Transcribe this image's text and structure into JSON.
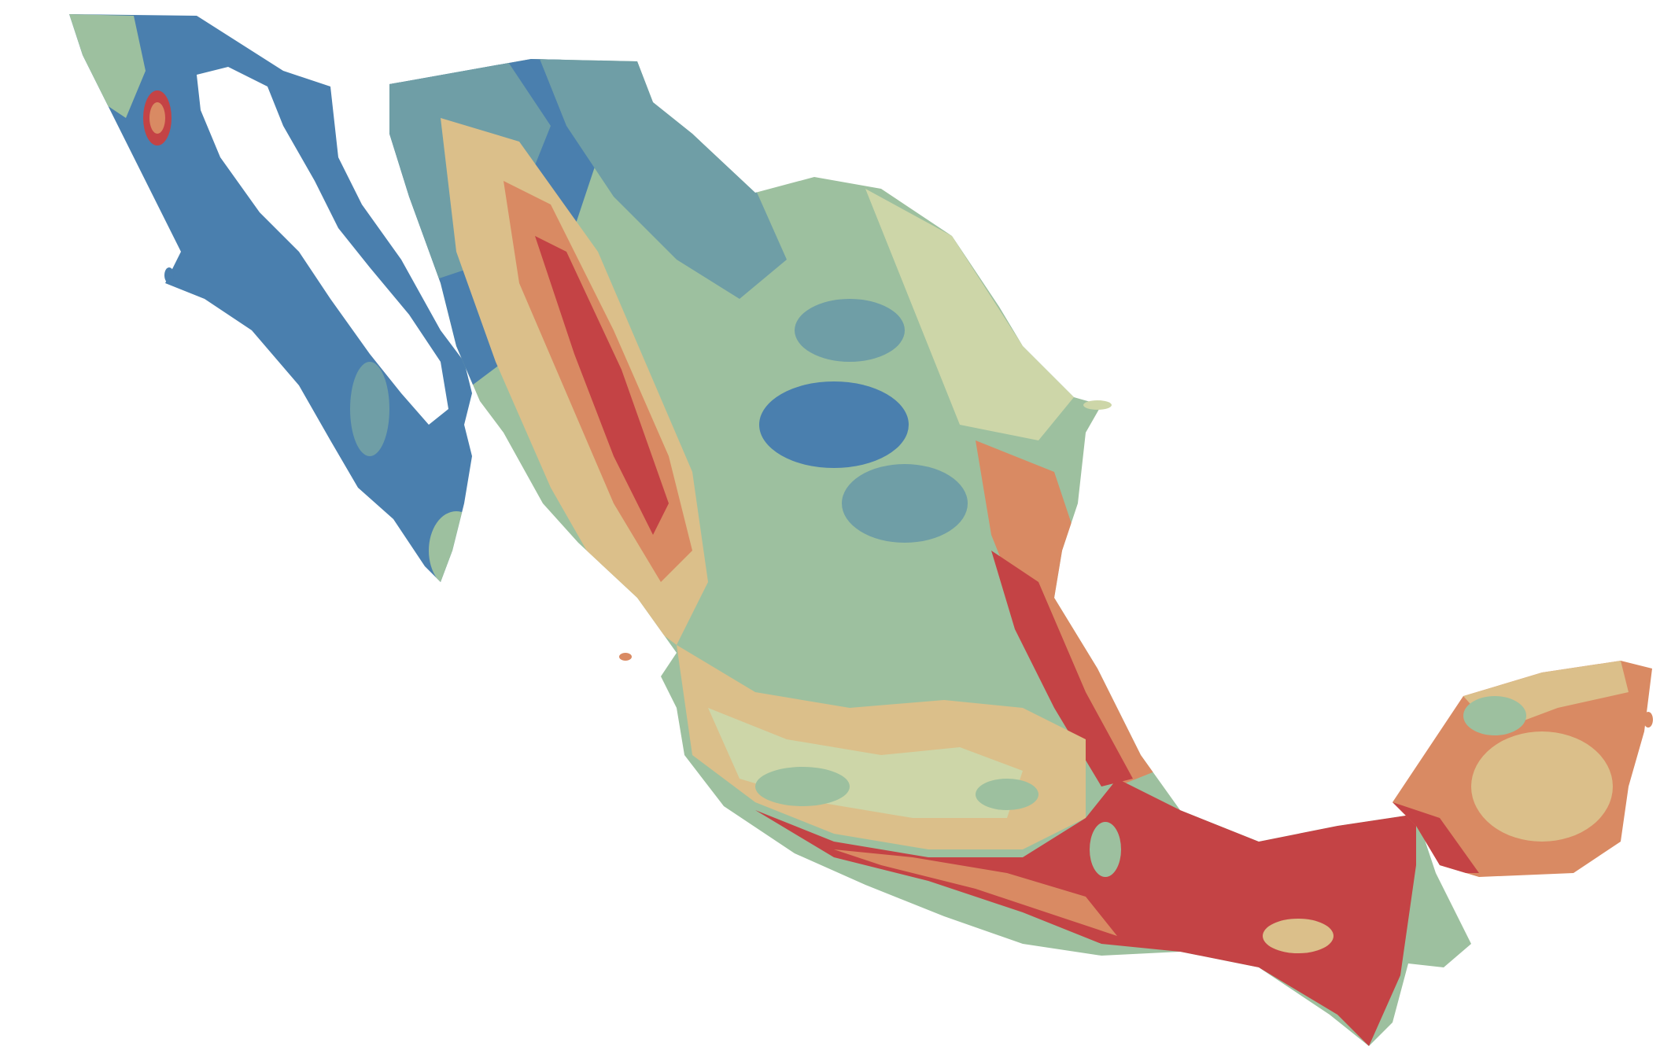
{
  "map": {
    "subject": "Mexico",
    "style": "choropleth raster, diverging color ramp",
    "background_color": "#ffffff",
    "legend": null,
    "title": "",
    "palette": {
      "blue": "#4a7fae",
      "teal": "#6f9ea6",
      "sage": "#9dc09f",
      "cream": "#cdd6a8",
      "tan": "#dbbf8a",
      "salmon": "#d98a63",
      "red": "#c44345"
    }
  }
}
